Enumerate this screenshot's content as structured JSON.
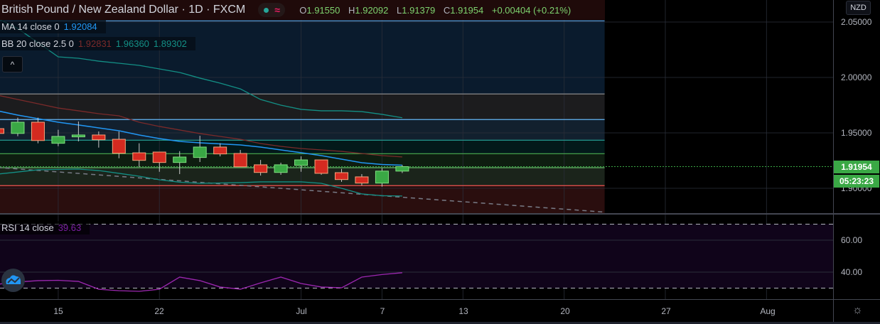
{
  "header": {
    "title": "British Pound / New Zealand Dollar · 1D · FXCM",
    "market_status_icon": "green-dot-icon",
    "data_icon": "wave-icon",
    "open_label": "O",
    "open": "1.91550",
    "high_label": "H",
    "high": "1.92092",
    "low_label": "L",
    "low": "1.91379",
    "close_label": "C",
    "close": "1.91954",
    "change": "+0.00404 (+0.21%)"
  },
  "legend": {
    "ma_label": "MA 14 close 0",
    "ma_value": "1.92084",
    "bb_label": "BB 20 close 2.5 0",
    "bb_basis": "1.92831",
    "bb_upper": "1.96360",
    "bb_lower": "1.89302",
    "rsi_label": "RSI 14 close",
    "rsi_value": "39.63",
    "collapse_icon": "^"
  },
  "price_axis": {
    "currency_button": "NZD",
    "labels": [
      "2.05000",
      "2.00000",
      "1.95000",
      "1.90000"
    ],
    "last_price": "1.91954",
    "countdown": "05:23:23",
    "rsi_labels": [
      "60.00",
      "40.00"
    ]
  },
  "time_axis": {
    "labels": [
      "15",
      "22",
      "Jul",
      "7",
      "13",
      "20",
      "27",
      "Aug"
    ]
  },
  "colors": {
    "up": "#3aa845",
    "down": "#d42a20",
    "ma": "#2196f3",
    "bb_band": "#138f85",
    "bb_basis": "#7a2a2a",
    "rsi": "#9c27b0",
    "last_price": "#3aa845"
  },
  "chart_data": {
    "type": "candlestick",
    "symbol": "GBPNZD",
    "timeframe": "1D",
    "ylim": [
      1.877,
      2.069
    ],
    "grid": true,
    "candles": [
      {
        "date": "2020-06-10",
        "o": 1.9538,
        "h": 1.955,
        "l": 1.949,
        "c": 1.9495
      },
      {
        "date": "2020-06-11",
        "o": 1.9495,
        "h": 1.9637,
        "l": 1.947,
        "c": 1.9596
      },
      {
        "date": "2020-06-12",
        "o": 1.9596,
        "h": 1.9637,
        "l": 1.9406,
        "c": 1.9431
      },
      {
        "date": "2020-06-15",
        "o": 1.9406,
        "h": 1.9528,
        "l": 1.938,
        "c": 1.9468
      },
      {
        "date": "2020-06-16",
        "o": 1.9464,
        "h": 1.9603,
        "l": 1.9423,
        "c": 1.9481
      },
      {
        "date": "2020-06-17",
        "o": 1.9481,
        "h": 1.9513,
        "l": 1.9367,
        "c": 1.9438
      },
      {
        "date": "2020-06-18",
        "o": 1.9442,
        "h": 1.9513,
        "l": 1.9271,
        "c": 1.9316
      },
      {
        "date": "2020-06-19",
        "o": 1.932,
        "h": 1.9406,
        "l": 1.9192,
        "c": 1.9252
      },
      {
        "date": "2020-06-22",
        "o": 1.9327,
        "h": 1.9327,
        "l": 1.9149,
        "c": 1.9233
      },
      {
        "date": "2020-06-23",
        "o": 1.9233,
        "h": 1.9335,
        "l": 1.9128,
        "c": 1.9282
      },
      {
        "date": "2020-06-24",
        "o": 1.9278,
        "h": 1.9474,
        "l": 1.9237,
        "c": 1.9372
      },
      {
        "date": "2020-06-25",
        "o": 1.9372,
        "h": 1.9406,
        "l": 1.9288,
        "c": 1.931
      },
      {
        "date": "2020-06-26",
        "o": 1.9314,
        "h": 1.9346,
        "l": 1.9194,
        "c": 1.9194
      },
      {
        "date": "2020-06-29",
        "o": 1.9212,
        "h": 1.9256,
        "l": 1.9115,
        "c": 1.9143
      },
      {
        "date": "2020-06-30",
        "o": 1.9143,
        "h": 1.9231,
        "l": 1.9122,
        "c": 1.9212
      },
      {
        "date": "2020-07-01",
        "o": 1.9207,
        "h": 1.9288,
        "l": 1.9149,
        "c": 1.9256
      },
      {
        "date": "2020-07-02",
        "o": 1.9256,
        "h": 1.9256,
        "l": 1.9122,
        "c": 1.9135
      },
      {
        "date": "2020-07-03",
        "o": 1.9141,
        "h": 1.9175,
        "l": 1.9058,
        "c": 1.9079
      },
      {
        "date": "2020-07-06",
        "o": 1.9103,
        "h": 1.9128,
        "l": 1.9026,
        "c": 1.9047
      },
      {
        "date": "2020-07-07",
        "o": 1.9047,
        "h": 1.9181,
        "l": 1.9015,
        "c": 1.9155
      },
      {
        "date": "2020-07-08",
        "o": 1.9155,
        "h": 1.92092,
        "l": 1.91379,
        "c": 1.91954
      }
    ],
    "ma14": [
      1.9699,
      1.966,
      1.9628,
      1.9596,
      1.9571,
      1.9545,
      1.9519,
      1.9481,
      1.9449,
      1.9423,
      1.941,
      1.9401,
      1.9391,
      1.9372,
      1.9346,
      1.9321,
      1.9295,
      1.9263,
      1.9231,
      1.9215,
      1.92084
    ],
    "bb_upper": [
      2.0532,
      2.0442,
      2.0314,
      2.0186,
      2.0173,
      2.0147,
      2.0128,
      2.0109,
      2.0077,
      2.0045,
      1.9994,
      1.9949,
      1.9897,
      1.9801,
      1.975,
      1.9712,
      1.9699,
      1.9699,
      1.9692,
      1.9667,
      1.9636
    ],
    "bb_basis": [
      1.984,
      1.9801,
      1.9763,
      1.9724,
      1.9699,
      1.9673,
      1.9654,
      1.9596,
      1.9558,
      1.9526,
      1.9494,
      1.9468,
      1.9442,
      1.9404,
      1.9378,
      1.9359,
      1.9346,
      1.9333,
      1.9314,
      1.9295,
      1.92831
    ],
    "bb_lower": [
      1.9128,
      1.9147,
      1.9167,
      1.917,
      1.9173,
      1.916,
      1.9135,
      1.9109,
      1.9077,
      1.9055,
      1.9045,
      1.9048,
      1.9051,
      1.9058,
      1.9058,
      1.9058,
      1.9045,
      1.9,
      1.8949,
      1.8933,
      1.89302
    ],
    "rsi14": [
      32.4,
      33.8,
      34.7,
      34.9,
      34.2,
      29.3,
      28.4,
      28.0,
      29.3,
      36.9,
      34.7,
      30.7,
      29.3,
      33.3,
      36.9,
      32.9,
      30.7,
      30.2,
      36.9,
      38.5,
      39.63
    ],
    "rsi_levels": [
      70,
      30
    ],
    "fib_levels": [
      2.051,
      1.9851,
      1.962,
      1.9434,
      1.9312,
      1.9186,
      1.9024
    ],
    "trendline": [
      {
        "date": "2020-06-10",
        "price": 1.9188
      },
      {
        "date": "2020-07-22",
        "price": 1.8785
      }
    ],
    "last_price": 1.91954
  }
}
